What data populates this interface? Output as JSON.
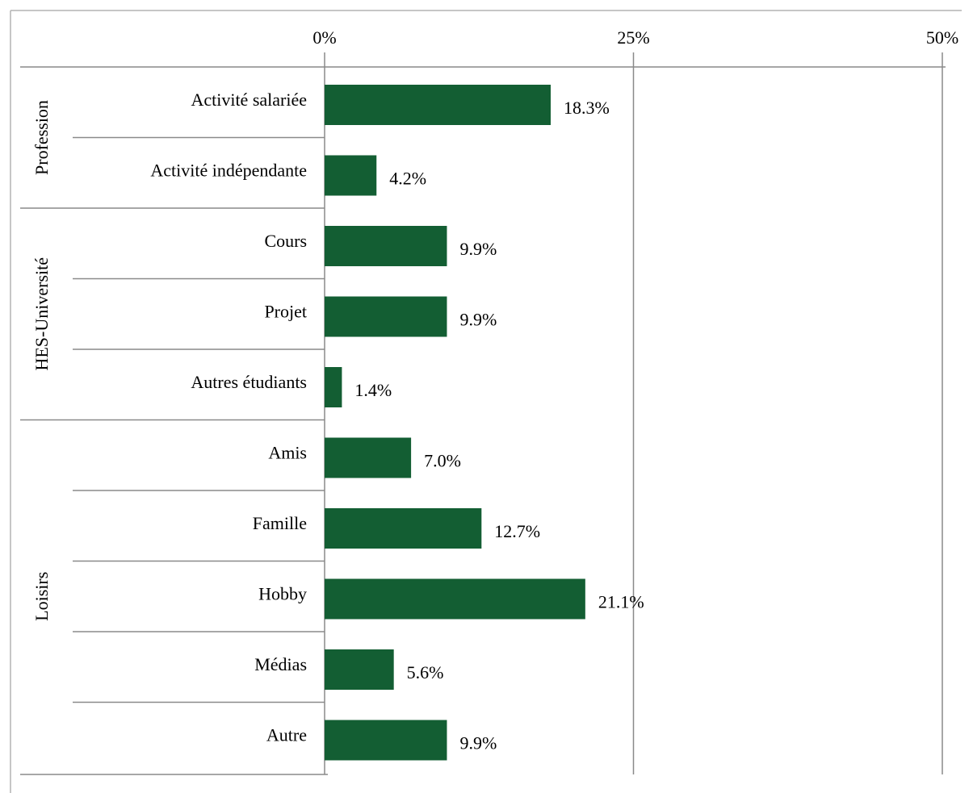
{
  "chart_data": {
    "type": "bar",
    "orientation": "horizontal",
    "x_ticks": [
      "0%",
      "25%",
      "50%"
    ],
    "xlim": [
      0,
      50
    ],
    "grid": true,
    "bar_color": "#135e33",
    "groups": [
      {
        "name": "Profession",
        "categories": [
          "Activité salariée",
          "Activité indépendante"
        ]
      },
      {
        "name": "HES-Université",
        "categories": [
          "Cours",
          "Projet",
          "Autres étudiants"
        ]
      },
      {
        "name": "Loisirs",
        "categories": [
          "Amis",
          "Famille",
          "Hobby",
          "Médias",
          "Autre"
        ]
      }
    ],
    "categories": [
      "Activité salariée",
      "Activité indépendante",
      "Cours",
      "Projet",
      "Autres étudiants",
      "Amis",
      "Famille",
      "Hobby",
      "Médias",
      "Autre"
    ],
    "values": [
      18.3,
      4.2,
      9.9,
      9.9,
      1.4,
      7.0,
      12.7,
      21.1,
      5.6,
      9.9
    ],
    "data_labels": [
      "18.3%",
      "4.2%",
      "9.9%",
      "9.9%",
      "1.4%",
      "7.0%",
      "12.7%",
      "21.1%",
      "5.6%",
      "9.9%"
    ]
  }
}
